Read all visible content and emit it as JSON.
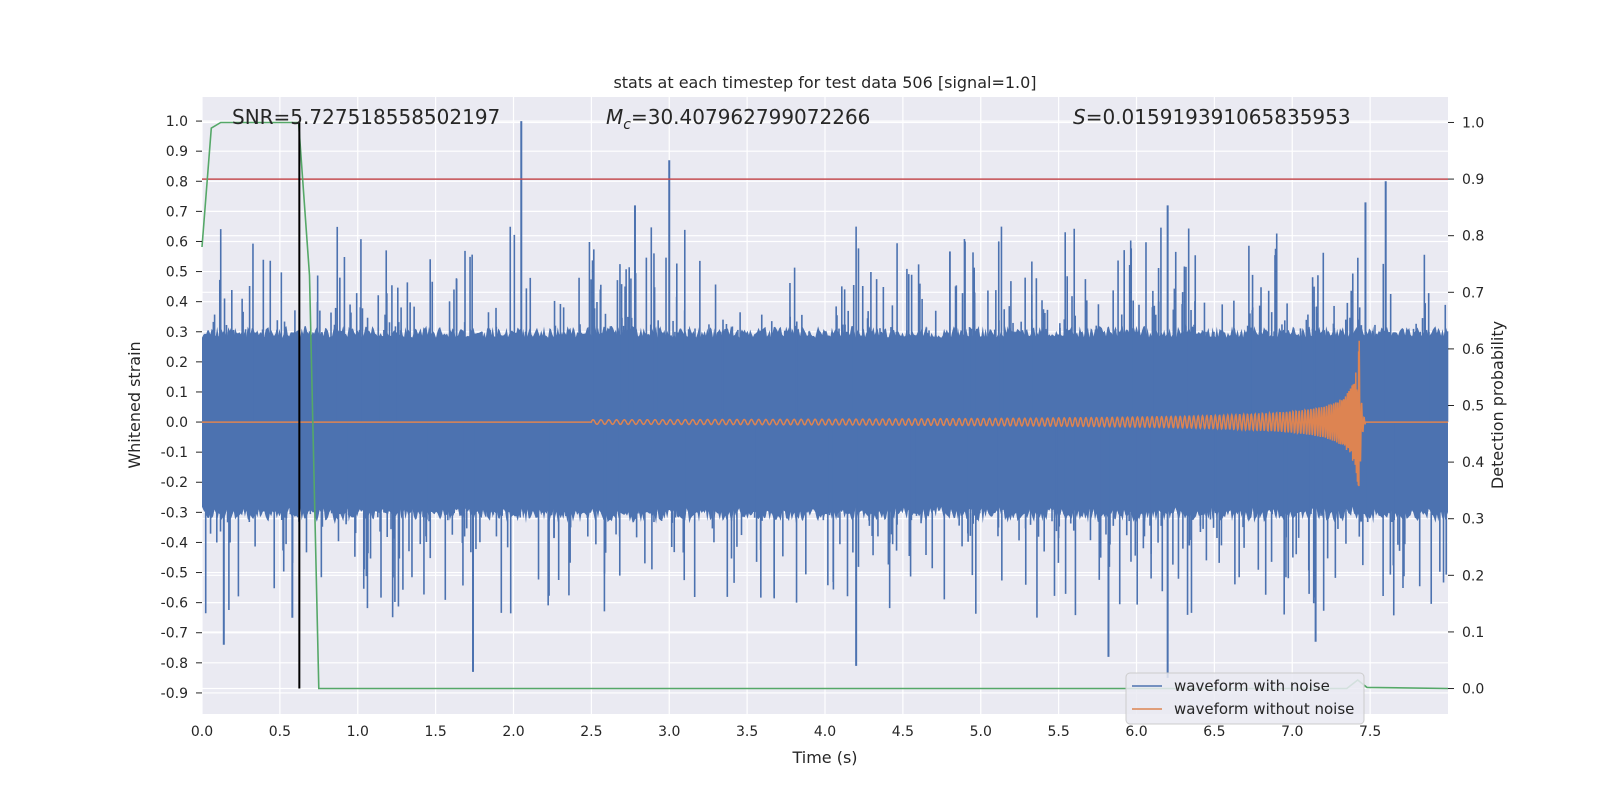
{
  "chart_data": {
    "type": "line",
    "title": "stats at each timestep for test data 506 [signal=1.0]",
    "xlabel": "Time (s)",
    "ylabel_left": "Whitened strain",
    "ylabel_right": "Detection probability",
    "xlim": [
      0.0,
      8.0
    ],
    "ylim_left": [
      -0.97,
      1.08
    ],
    "ylim_right": [
      -0.045,
      1.045
    ],
    "xticks": [
      "0.0",
      "0.5",
      "1.0",
      "1.5",
      "2.0",
      "2.5",
      "3.0",
      "3.5",
      "4.0",
      "4.5",
      "5.0",
      "5.5",
      "6.0",
      "6.5",
      "7.0",
      "7.5"
    ],
    "yticks_left": [
      "1.0",
      "0.9",
      "0.8",
      "0.7",
      "0.6",
      "0.5",
      "0.4",
      "0.3",
      "0.2",
      "0.1",
      "0.0",
      "-0.1",
      "-0.2",
      "-0.3",
      "-0.4",
      "-0.5",
      "-0.6",
      "-0.7",
      "-0.8",
      "-0.9"
    ],
    "yticks_right": [
      "1.0",
      "0.9",
      "0.8",
      "0.7",
      "0.6",
      "0.5",
      "0.4",
      "0.3",
      "0.2",
      "0.1",
      "0.0"
    ],
    "annotations": {
      "snr": "SNR=5.727518558502197",
      "mc_symbol": "M",
      "mc_sub": "c",
      "mc_value": "=30.407962799072266",
      "s_symbol": "S",
      "s_value": "=0.015919391065835953"
    },
    "threshold_right": 0.9,
    "detection_time": 0.625,
    "noise_series": {
      "name": "waveform with noise",
      "color": "#4c72b0",
      "core_amplitude": 0.28,
      "spikes": [
        {
          "t": 2.05,
          "y": 1.0
        },
        {
          "t": 3.0,
          "y": 0.87
        },
        {
          "t": 2.78,
          "y": 0.72
        },
        {
          "t": 7.6,
          "y": 0.8
        },
        {
          "t": 6.2,
          "y": 0.72
        },
        {
          "t": 7.47,
          "y": 0.73
        },
        {
          "t": 6.2,
          "y": -0.85
        },
        {
          "t": 4.2,
          "y": -0.81
        },
        {
          "t": 1.74,
          "y": -0.83
        },
        {
          "t": 5.82,
          "y": -0.78
        },
        {
          "t": 0.58,
          "y": -0.65
        },
        {
          "t": 7.15,
          "y": -0.73
        },
        {
          "t": 0.14,
          "y": -0.74
        }
      ]
    },
    "clean_series": {
      "name": "waveform without noise",
      "color": "#dd8452",
      "chirp_start": 2.5,
      "merger_time": 7.43,
      "peak_amplitude": 0.27
    },
    "probability_series": {
      "name": "detection probability",
      "color": "#55a868",
      "points": [
        [
          0.0,
          0.78
        ],
        [
          0.06,
          0.99
        ],
        [
          0.12,
          1.0
        ],
        [
          0.62,
          1.0
        ],
        [
          0.69,
          0.73
        ],
        [
          0.75,
          0.0
        ],
        [
          7.35,
          0.0
        ],
        [
          7.42,
          0.015
        ],
        [
          7.48,
          0.002
        ],
        [
          8.0,
          0.0
        ]
      ]
    },
    "legend": {
      "location": "lower-right",
      "entries": [
        {
          "label": "waveform with noise",
          "color": "#4c72b0"
        },
        {
          "label": "waveform without noise",
          "color": "#dd8452"
        }
      ]
    },
    "colors": {
      "axes_bg": "#eaeaf2",
      "grid": "#ffffff",
      "threshold": "#c44e52",
      "detection_line": "#000000"
    }
  }
}
